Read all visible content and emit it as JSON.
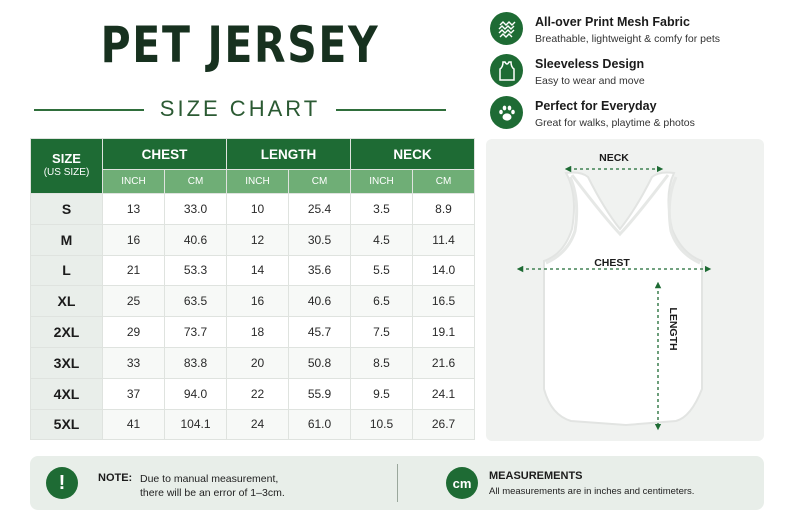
{
  "title": "PET JERSEY",
  "subtitle": "SIZE CHART",
  "features": [
    {
      "icon": "mesh-fabric-icon",
      "title": "All-over Print Mesh Fabric",
      "desc": "Breathable, lightweight & comfy for pets"
    },
    {
      "icon": "tank-top-icon",
      "title": "Sleeveless Design",
      "desc": "Easy to wear and move"
    },
    {
      "icon": "paw-icon",
      "title": "Perfect for Everyday",
      "desc": "Great for walks, playtime & photos"
    }
  ],
  "table": {
    "size_header": "SIZE",
    "size_sub": "(US SIZE)",
    "groups": [
      "CHEST",
      "LENGTH",
      "NECK"
    ],
    "unit_inch": "INCH",
    "unit_cm": "CM",
    "rows": [
      {
        "size": "S",
        "values": [
          "13",
          "33.0",
          "10",
          "25.4",
          "3.5",
          "8.9"
        ]
      },
      {
        "size": "M",
        "values": [
          "16",
          "40.6",
          "12",
          "30.5",
          "4.5",
          "11.4"
        ]
      },
      {
        "size": "L",
        "values": [
          "21",
          "53.3",
          "14",
          "35.6",
          "5.5",
          "14.0"
        ]
      },
      {
        "size": "XL",
        "values": [
          "25",
          "63.5",
          "16",
          "40.6",
          "6.5",
          "16.5"
        ]
      },
      {
        "size": "2XL",
        "values": [
          "29",
          "73.7",
          "18",
          "45.7",
          "7.5",
          "19.1"
        ]
      },
      {
        "size": "3XL",
        "values": [
          "33",
          "83.8",
          "20",
          "50.8",
          "8.5",
          "21.6"
        ]
      },
      {
        "size": "4XL",
        "values": [
          "37",
          "94.0",
          "22",
          "55.9",
          "9.5",
          "24.1"
        ]
      },
      {
        "size": "5XL",
        "values": [
          "41",
          "104.1",
          "24",
          "61.0",
          "10.5",
          "26.7"
        ]
      }
    ]
  },
  "diagram": {
    "neck": "NECK",
    "chest": "CHEST",
    "length": "LENGTH"
  },
  "note": {
    "icon": "exclamation-icon",
    "icon_text": "!",
    "label": "NOTE:",
    "line1": "Due to manual measurement,",
    "line2": "there will be an error of 1–3cm."
  },
  "measurements": {
    "icon": "cm-badge-icon",
    "icon_text": "cm",
    "title": "MEASUREMENTS",
    "text": "All measurements are in inches and centimeters."
  },
  "colors": {
    "primary_green": "#1e6b34",
    "light_green": "#6fae76",
    "title_dark": "#17311f",
    "panel_bg": "#f0f2f0"
  }
}
